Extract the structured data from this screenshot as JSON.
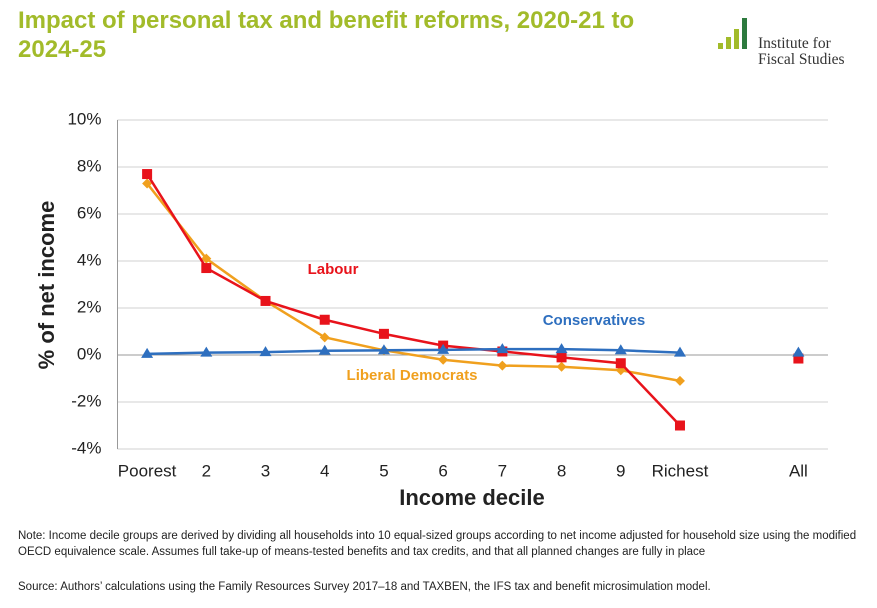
{
  "logo": {
    "lines": [
      "Institute for",
      "Fiscal Studies"
    ]
  },
  "chart_data": {
    "type": "line",
    "title": "Impact of personal tax and benefit reforms, 2020-21 to 2024-25",
    "y_label": "% of net income",
    "x_label": "Income decile",
    "categories": [
      "Poorest",
      "2",
      "3",
      "4",
      "5",
      "6",
      "7",
      "8",
      "9",
      "Richest",
      null,
      "All"
    ],
    "series": [
      {
        "name": "Liberal Democrats",
        "color": "#f0a01e",
        "marker": "diamond",
        "values": [
          7.3,
          4.1,
          2.3,
          0.75,
          0.2,
          -0.2,
          -0.45,
          -0.5,
          -0.65,
          -1.1,
          null,
          null
        ]
      },
      {
        "name": "Labour",
        "color": "#e8131b",
        "marker": "square",
        "values": [
          7.7,
          3.7,
          2.3,
          1.5,
          0.9,
          0.4,
          0.15,
          -0.1,
          -0.35,
          -3.0,
          null,
          -0.15
        ]
      },
      {
        "name": "Conservatives",
        "color": "#2e6fbf",
        "marker": "triangle",
        "values": [
          0.05,
          0.1,
          0.12,
          0.18,
          0.2,
          0.22,
          0.25,
          0.25,
          0.2,
          0.1,
          null,
          0.1
        ]
      }
    ],
    "ylim": [
      -4,
      10
    ],
    "yticks": [
      {
        "value": -4,
        "label": "-4%"
      },
      {
        "value": -2,
        "label": "-2%"
      },
      {
        "value": 0,
        "label": "0%"
      },
      {
        "value": 2,
        "label": "2%"
      },
      {
        "value": 4,
        "label": "4%"
      },
      {
        "value": 6,
        "label": "6%"
      },
      {
        "value": 8,
        "label": "8%"
      },
      {
        "value": 10,
        "label": "10%"
      }
    ],
    "grid": true,
    "note": "Note: Income decile groups are derived by dividing all households into 10 equal-sized groups according to net income adjusted for household size using the modified OECD equivalence scale. Assumes full take-up of means-tested benefits and tax credits, and that all planned changes are fully in place",
    "source": "Source: Authors’ calculations using the Family Resources Survey 2017–18 and TAXBEN, the IFS tax and benefit microsimulation model."
  }
}
